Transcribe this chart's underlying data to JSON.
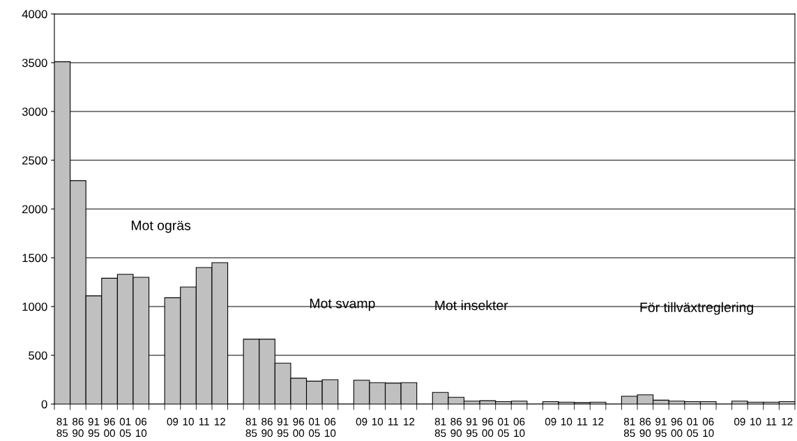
{
  "chart_data": {
    "type": "bar",
    "categories": [
      "81\n85",
      "86\n90",
      "91\n95",
      "96\n00",
      "01\n05",
      "06\n10",
      null,
      "09",
      "10",
      "11",
      "12",
      null,
      "81\n85",
      "86\n90",
      "91\n95",
      "96\n00",
      "01\n05",
      "06\n10",
      null,
      "09",
      "10",
      "11",
      "12",
      null,
      "81\n85",
      "86\n90",
      "91\n95",
      "96\n00",
      "01\n05",
      "06\n10",
      null,
      "09",
      "10",
      "11",
      "12",
      null,
      "81\n85",
      "86\n90",
      "91\n95",
      "96\n00",
      "01\n05",
      "06\n10",
      null,
      "09",
      "10",
      "11",
      "12"
    ],
    "values": [
      3510,
      2290,
      1110,
      1290,
      1330,
      1300,
      null,
      1090,
      1200,
      1400,
      1450,
      null,
      665,
      665,
      420,
      265,
      235,
      250,
      null,
      245,
      220,
      215,
      220,
      null,
      120,
      70,
      30,
      35,
      25,
      30,
      null,
      25,
      20,
      15,
      20,
      null,
      80,
      95,
      40,
      30,
      25,
      25,
      null,
      30,
      20,
      20,
      25
    ],
    "color": "#c0c0c0",
    "ylim": [
      0,
      4000
    ],
    "yticks": [
      0,
      500,
      1000,
      1500,
      2000,
      2500,
      3000,
      3500,
      4000
    ],
    "grid": "y",
    "annotations": [
      "Mot ogräs",
      "Mot svamp",
      "Mot insekter",
      "För tillväxtreglering"
    ]
  }
}
